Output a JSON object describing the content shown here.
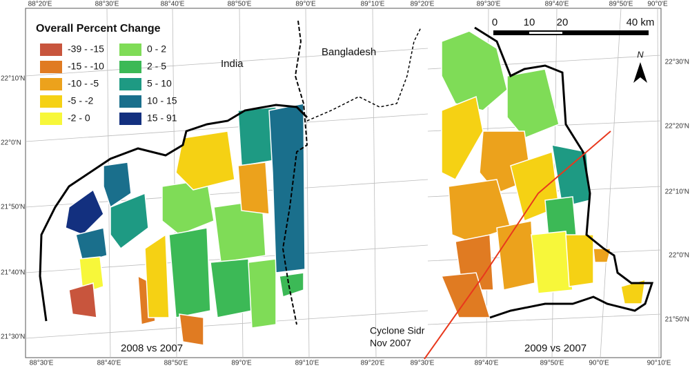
{
  "legend": {
    "title": "Overall Percent Change",
    "items": [
      {
        "label": "-39 - -15",
        "color": "#c8553d"
      },
      {
        "label": "-15 - -10",
        "color": "#e07b22"
      },
      {
        "label": "-10 - -5",
        "color": "#eca21c"
      },
      {
        "label": "-5 - -2",
        "color": "#f5d114"
      },
      {
        "label": "-2 - 0",
        "color": "#f7f73a"
      },
      {
        "label": "0 - 2",
        "color": "#7fdc57"
      },
      {
        "label": "2 - 5",
        "color": "#3cb956"
      },
      {
        "label": "5 - 10",
        "color": "#1e9a83"
      },
      {
        "label": "10 - 15",
        "color": "#1a6f8c"
      },
      {
        "label": "15 - 91",
        "color": "#13307f"
      }
    ]
  },
  "axes": {
    "top": [
      "88°20'E",
      "88°30'E",
      "88°40'E",
      "88°50'E",
      "89°0'E",
      "89°10'E",
      "89°20'E",
      "89°30'E",
      "89°40'E",
      "89°50'E",
      "90°0'E"
    ],
    "bottom": [
      "88°30'E",
      "88°40'E",
      "88°50'E",
      "89°0'E",
      "89°10'E",
      "89°20'E",
      "89°30'E",
      "89°40'E",
      "89°50'E",
      "90°0'E",
      "90°10'E"
    ],
    "left": [
      "22°10'N",
      "22°0'N",
      "21°50'N",
      "21°40'N",
      "21°30'N"
    ],
    "right": [
      "22°30'N",
      "22°20'N",
      "22°10'N",
      "22°0'N",
      "21°50'N"
    ]
  },
  "labels": {
    "india": "India",
    "bangladesh": "Bangladesh",
    "left_panel": "2008 vs 2007",
    "right_panel": "2009 vs 2007",
    "cyclone": [
      "Cyclone Sidr",
      "Nov 2007"
    ],
    "north": "N"
  },
  "scale_bar": [
    "0",
    "10",
    "20",
    "40 km"
  ]
}
